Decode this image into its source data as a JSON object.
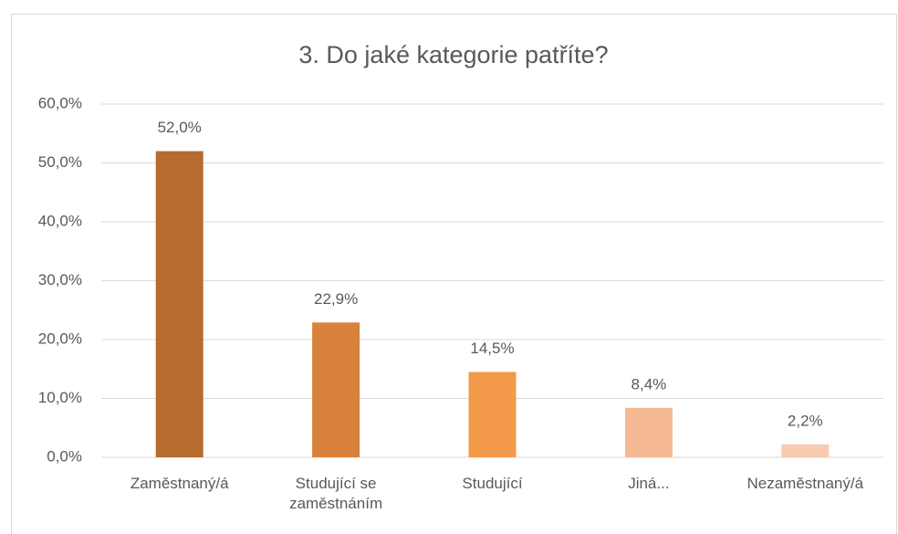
{
  "chart_data": {
    "type": "bar",
    "title": "3. Do jaké kategorie patříte?",
    "categories": [
      "Zaměstnaný/á",
      "Studující se zaměstnáním",
      "Studující",
      "Jiná...",
      "Nezaměstnaný/á"
    ],
    "values": [
      52.0,
      22.9,
      14.5,
      8.4,
      2.2
    ],
    "value_labels": [
      "52,0%",
      "22,9%",
      "14,5%",
      "8,4%",
      "2,2%"
    ],
    "colors": [
      "#b56c2e",
      "#d9823b",
      "#f39a4a",
      "#f5b994",
      "#f8cab2"
    ],
    "ylim": [
      0,
      60
    ],
    "yticks": [
      {
        "value": 0,
        "label": "0,0%"
      },
      {
        "value": 10,
        "label": "10,0%"
      },
      {
        "value": 20,
        "label": "20,0%"
      },
      {
        "value": 30,
        "label": "30,0%"
      },
      {
        "value": 40,
        "label": "40,0%"
      },
      {
        "value": 50,
        "label": "50,0%"
      },
      {
        "value": 60,
        "label": "60,0%"
      }
    ],
    "grid": true
  }
}
